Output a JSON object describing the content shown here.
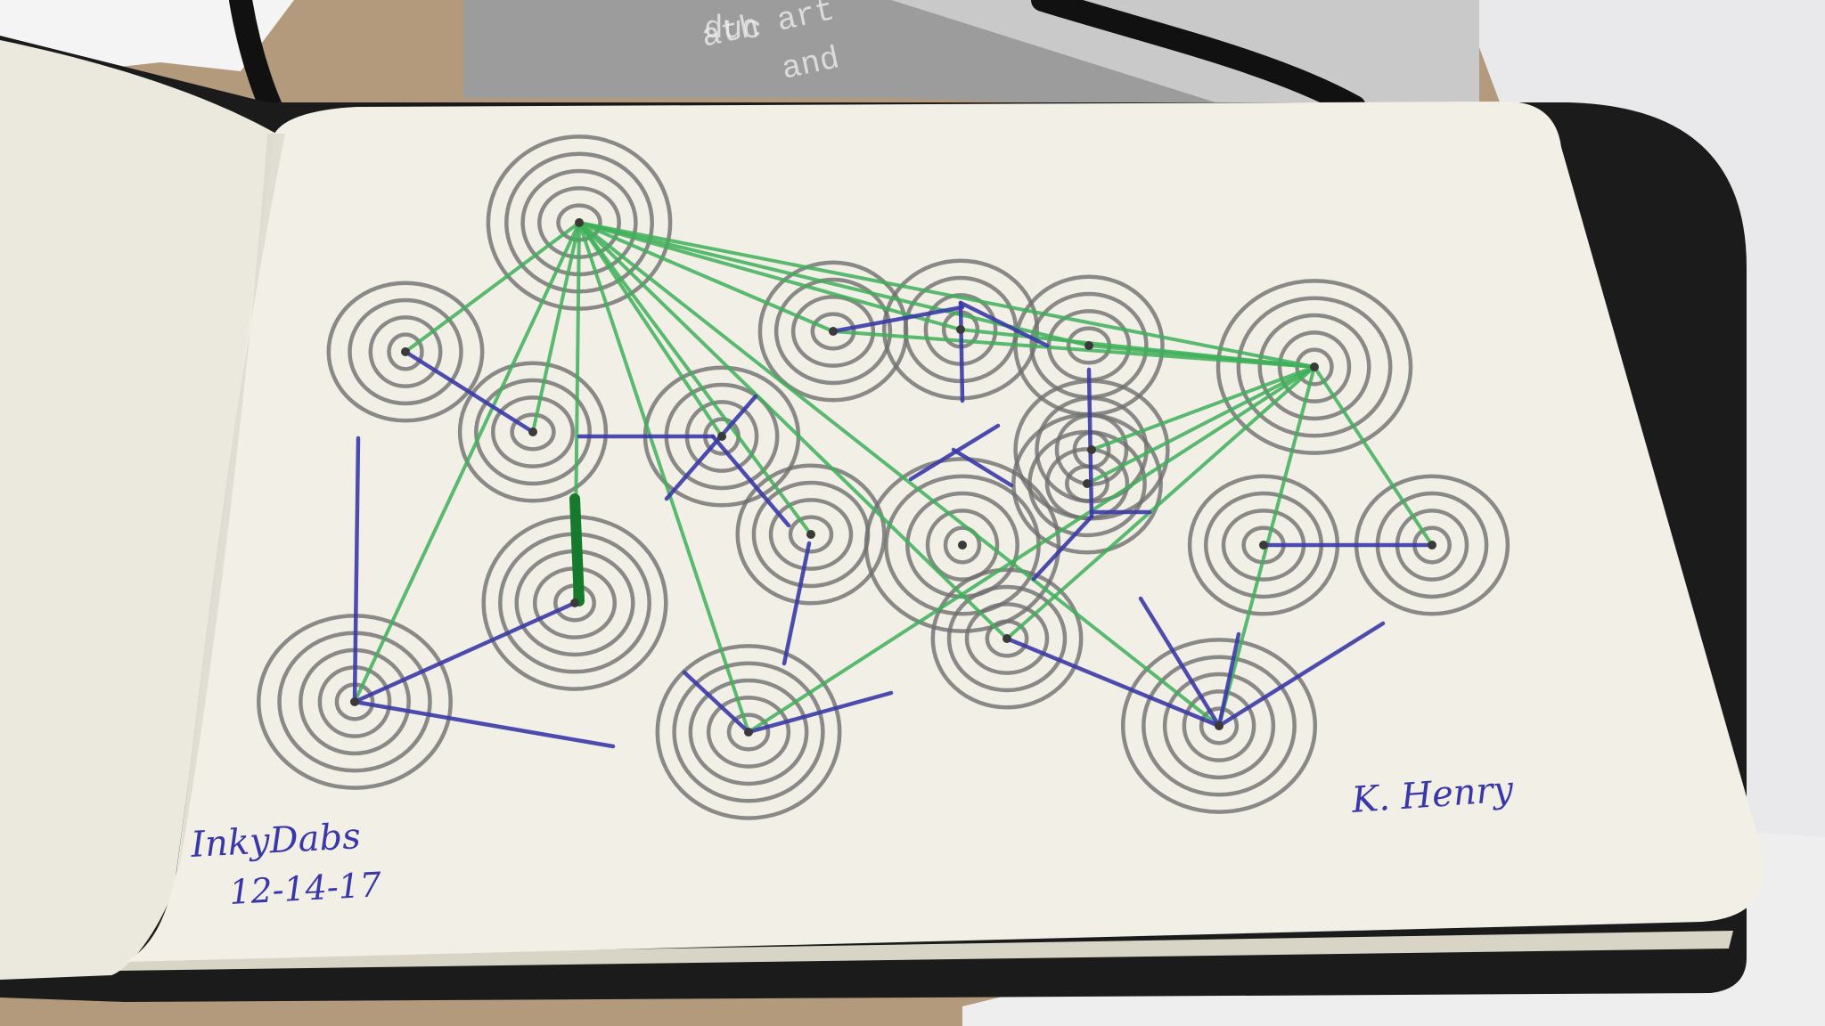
{
  "signature": {
    "title": "InkyDabs",
    "date": "12-14-17",
    "artist": "K. Henry"
  },
  "background_print_fragments": [
    "duc",
    "ath art",
    "and"
  ],
  "ink_colors": {
    "rings": "#6f6f6f",
    "connector_green": "#3fb05a",
    "connector_dark_green": "#167a2c",
    "connector_blue": "#3b3aa8",
    "paper": "#f1efe6",
    "notebook_cover": "#1a1a1a",
    "desk": "#b39a7d"
  },
  "icons": {
    "rings": "concentric-circle-icon",
    "lines": "ink-line-icon"
  }
}
